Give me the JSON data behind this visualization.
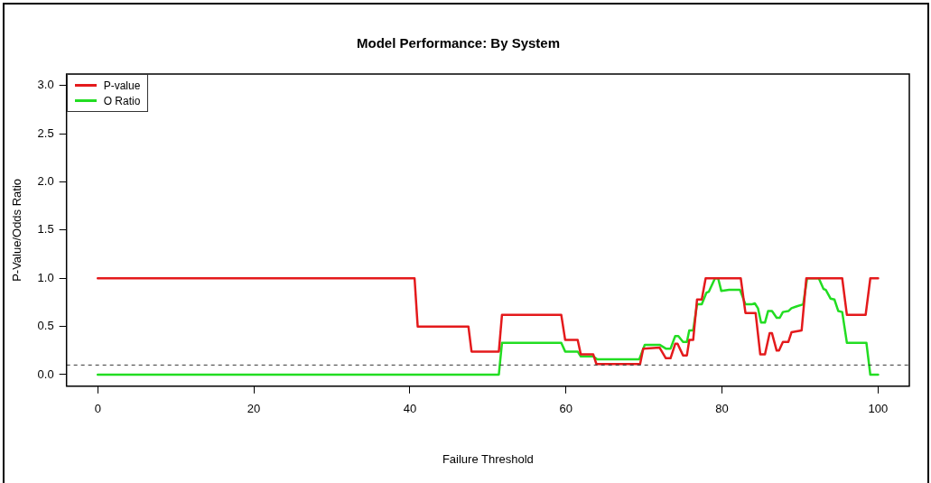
{
  "chart_data": {
    "type": "line",
    "title": "Model Performance: By System",
    "xlabel": "Failure Threshold",
    "ylabel": "P-Value/Odds Ratio",
    "xlim": [
      -4,
      104
    ],
    "xticks": [
      0,
      20,
      40,
      60,
      80,
      100
    ],
    "ylim": [
      -0.12,
      3.12
    ],
    "yticks": [
      {
        "value": 0,
        "label": "0.0"
      },
      {
        "value": 0.5,
        "label": "0.5"
      },
      {
        "value": 1,
        "label": "1.0"
      },
      {
        "value": 1.5,
        "label": "1.5"
      },
      {
        "value": 2,
        "label": "2.0"
      },
      {
        "value": 2.5,
        "label": "2.5"
      },
      {
        "value": 3,
        "label": "3.0"
      }
    ],
    "grid": false,
    "legend": "top left",
    "marker": "none",
    "line_style": "solid",
    "ref_lines": [
      {
        "axis": "y",
        "value": 0.1,
        "color": "#333333",
        "line_style": "dashed"
      }
    ],
    "series": [
      {
        "name": "P-value",
        "color": "#e41a1c",
        "x": [
          0,
          40.6,
          41.0,
          47.5,
          47.9,
          51.4,
          51.8,
          59.4,
          59.9,
          61.5,
          61.9,
          63.5,
          63.9,
          69.5,
          69.9,
          72.0,
          72.8,
          73.4,
          74.0,
          74.3,
          75.0,
          75.5,
          75.8,
          76.3,
          76.8,
          77.4,
          77.9,
          82.4,
          83.0,
          84.3,
          84.9,
          85.5,
          86.1,
          86.4,
          87.0,
          87.3,
          87.8,
          88.5,
          88.9,
          90.2,
          90.8,
          95.4,
          96.0,
          98.4,
          99.0,
          100
        ],
        "values": [
          1,
          1,
          0.5,
          0.5,
          0.24,
          0.24,
          0.62,
          0.62,
          0.36,
          0.36,
          0.21,
          0.21,
          0.11,
          0.11,
          0.27,
          0.28,
          0.17,
          0.17,
          0.32,
          0.32,
          0.2,
          0.2,
          0.36,
          0.36,
          0.78,
          0.78,
          1,
          1,
          0.64,
          0.64,
          0.21,
          0.21,
          0.43,
          0.43,
          0.25,
          0.25,
          0.34,
          0.34,
          0.44,
          0.46,
          1,
          1,
          0.62,
          0.62,
          1,
          1
        ]
      },
      {
        "name": "O Ratio",
        "color": "#22dd22",
        "x": [
          0,
          51.4,
          51.8,
          59.4,
          59.9,
          61.5,
          61.9,
          63.5,
          64.0,
          69.4,
          70.1,
          72.0,
          72.8,
          73.4,
          74.0,
          74.4,
          75.0,
          75.5,
          75.8,
          76.3,
          76.8,
          77.4,
          78.0,
          78.3,
          79.1,
          79.5,
          79.9,
          80.9,
          82.3,
          83.0,
          83.8,
          84.2,
          84.6,
          85.0,
          85.5,
          85.9,
          86.4,
          87.0,
          87.4,
          87.8,
          88.5,
          88.9,
          89.6,
          90.4,
          90.9,
          92.4,
          93.0,
          93.3,
          93.9,
          94.4,
          94.9,
          95.4,
          96.0,
          98.5,
          99.0,
          100
        ],
        "values": [
          0,
          0,
          0.33,
          0.33,
          0.24,
          0.24,
          0.19,
          0.19,
          0.16,
          0.16,
          0.31,
          0.31,
          0.27,
          0.27,
          0.4,
          0.4,
          0.34,
          0.34,
          0.46,
          0.46,
          0.73,
          0.73,
          0.85,
          0.86,
          1,
          1,
          0.87,
          0.88,
          0.88,
          0.73,
          0.73,
          0.74,
          0.69,
          0.54,
          0.54,
          0.66,
          0.66,
          0.59,
          0.59,
          0.65,
          0.66,
          0.69,
          0.71,
          0.73,
          1,
          1,
          0.89,
          0.88,
          0.79,
          0.78,
          0.66,
          0.65,
          0.33,
          0.33,
          0,
          0
        ]
      }
    ]
  }
}
